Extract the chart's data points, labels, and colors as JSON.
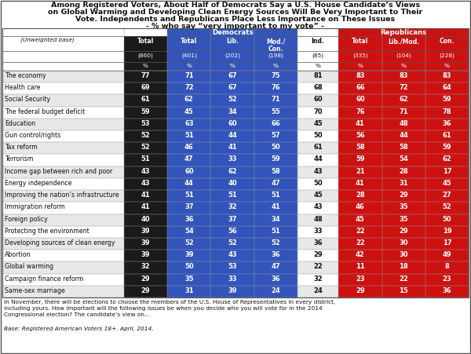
{
  "title_line1": "Among Registered Voters, About Half of Democrats Say a U.S. House Candidate’s Views",
  "title_line2": "on Global Warming and Developing Clean Energy Sources Will Be Very Important to Their",
  "title_line3": "Vote. Independents and Republicans Place Less Importance on These Issues",
  "title_line4": "- % who say “very important to my vote” -",
  "rows": [
    {
      "label": "The economy",
      "vals": [
        77,
        71,
        67,
        75,
        81,
        83,
        83,
        83
      ]
    },
    {
      "label": "Health care",
      "vals": [
        69,
        72,
        67,
        76,
        68,
        66,
        72,
        64
      ]
    },
    {
      "label": "Social Security",
      "vals": [
        61,
        62,
        52,
        71,
        60,
        60,
        62,
        59
      ]
    },
    {
      "label": "The federal budget deficit",
      "vals": [
        59,
        45,
        34,
        55,
        70,
        76,
        71,
        78
      ]
    },
    {
      "label": "Education",
      "vals": [
        53,
        63,
        60,
        66,
        45,
        41,
        48,
        36
      ]
    },
    {
      "label": "Gun control/rights",
      "vals": [
        52,
        51,
        44,
        57,
        50,
        56,
        44,
        61
      ]
    },
    {
      "label": "Tax reform",
      "vals": [
        52,
        46,
        41,
        50,
        61,
        58,
        58,
        59
      ]
    },
    {
      "label": "Terrorism",
      "vals": [
        51,
        47,
        33,
        59,
        44,
        59,
        54,
        62
      ]
    },
    {
      "label": "Income gap between rich and poor",
      "vals": [
        43,
        60,
        62,
        58,
        43,
        21,
        28,
        17
      ]
    },
    {
      "label": "Energy independence",
      "vals": [
        43,
        44,
        40,
        47,
        50,
        41,
        31,
        45
      ]
    },
    {
      "label": "Improving the nation’s infrastructure",
      "vals": [
        41,
        51,
        51,
        51,
        45,
        28,
        29,
        27
      ]
    },
    {
      "label": "Immigration reform",
      "vals": [
        41,
        37,
        32,
        41,
        43,
        46,
        35,
        52
      ]
    },
    {
      "label": "Foreign policy",
      "vals": [
        40,
        36,
        37,
        34,
        48,
        45,
        35,
        50
      ]
    },
    {
      "label": "Protecting the environment",
      "vals": [
        39,
        54,
        56,
        51,
        33,
        22,
        29,
        19
      ]
    },
    {
      "label": "Developing sources of clean energy",
      "vals": [
        39,
        52,
        52,
        52,
        36,
        22,
        30,
        17
      ]
    },
    {
      "label": "Abortion",
      "vals": [
        39,
        39,
        43,
        36,
        29,
        42,
        30,
        49
      ]
    },
    {
      "label": "Global warming",
      "vals": [
        32,
        50,
        53,
        47,
        22,
        11,
        18,
        8
      ]
    },
    {
      "label": "Campaign finance reform",
      "vals": [
        29,
        35,
        33,
        36,
        32,
        23,
        22,
        23
      ]
    },
    {
      "label": "Same-sex marriage",
      "vals": [
        29,
        31,
        39,
        24,
        24,
        29,
        15,
        36
      ]
    }
  ],
  "sub_labels": [
    "Total",
    "Total",
    "Lib.",
    "Mod./\nCon.",
    "Ind.",
    "Total",
    "Lib./Mod.",
    "Con."
  ],
  "base_vals": [
    "(860)",
    "(401)",
    "(202)",
    "(198)",
    "(85)",
    "(335)",
    "(104)",
    "(228)"
  ],
  "footer_text": "In November, there will be elections to choose the members of the U.S. House of Representatives in every district,\nincluding yours. How important will the following issues be when you decide who you will vote for in the 2014\nCongressional election? The candidate’s view on...",
  "base_text": "Base: Registered American Voters 18+. April, 2014.",
  "col_bg": [
    "#1a1a1a",
    "#3355bb",
    "#3355bb",
    "#3355bb",
    "#ffffff",
    "#cc1111",
    "#cc1111",
    "#cc1111"
  ],
  "col_text": [
    "#ffffff",
    "#ffffff",
    "#ffffff",
    "#ffffff",
    "#111111",
    "#ffffff",
    "#ffffff",
    "#ffffff"
  ],
  "dem_color": "#3355bb",
  "rep_color": "#cc1111",
  "dark_color": "#1a1a1a",
  "alt_row_colors": [
    "#e8e8e8",
    "#ffffff"
  ]
}
